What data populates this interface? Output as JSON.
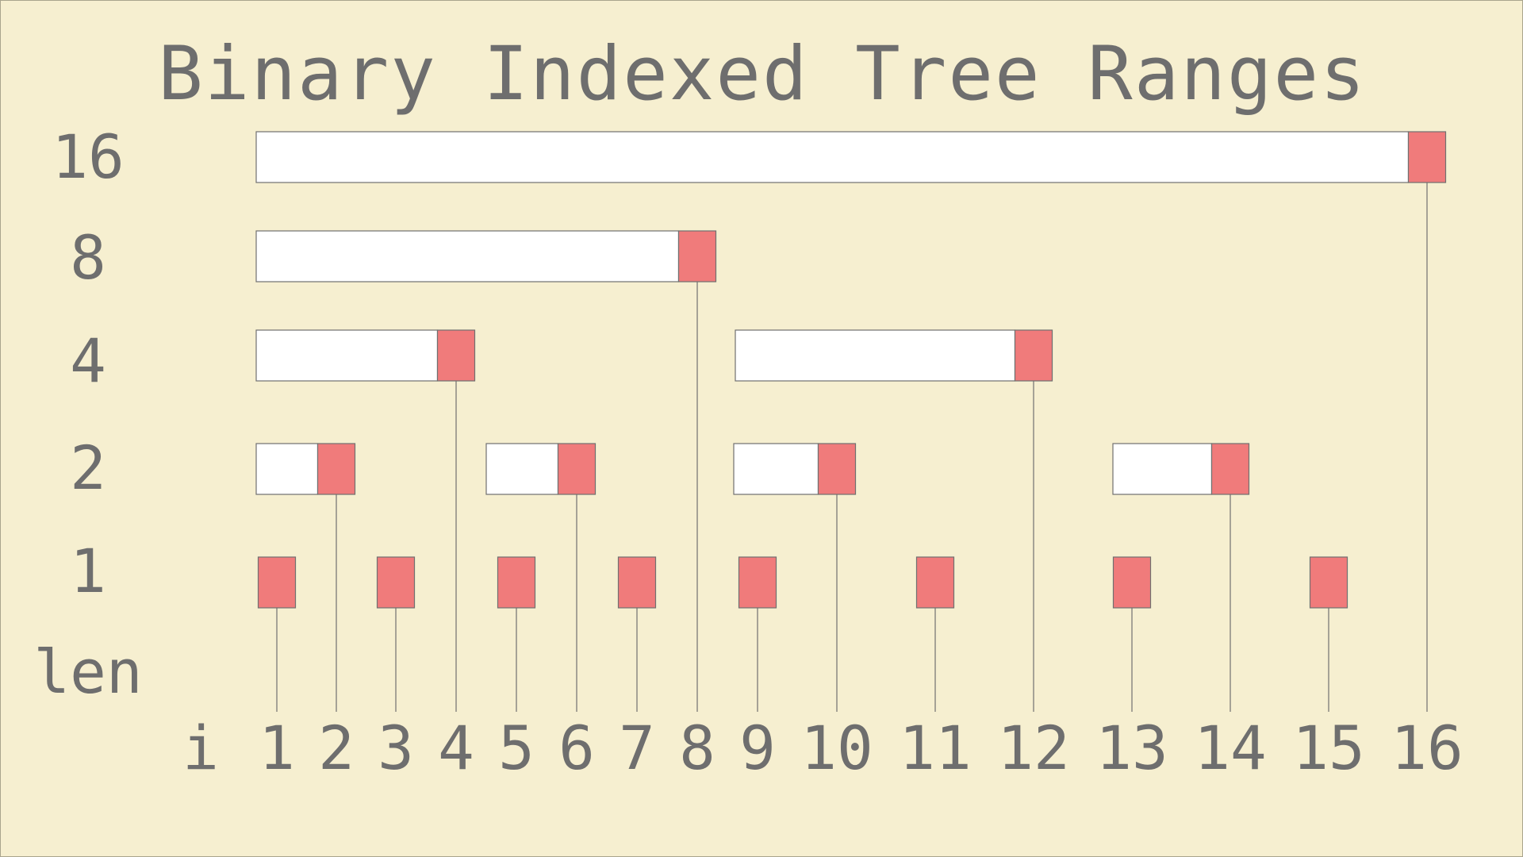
{
  "title": "Binary Indexed Tree Ranges",
  "colors": {
    "background": "#f6efd0",
    "node": "#f07b7b",
    "range": "#ffffff",
    "text": "#6e6e6e",
    "line": "#707070"
  },
  "y_axis": {
    "label": "len",
    "levels": [
      "16",
      "8",
      "4",
      "2",
      "1"
    ]
  },
  "x_axis": {
    "label": "i",
    "indices": [
      "1",
      "2",
      "3",
      "4",
      "5",
      "6",
      "7",
      "8",
      "9",
      "10",
      "11",
      "12",
      "13",
      "14",
      "15",
      "16"
    ]
  },
  "ranges": [
    {
      "index": 1,
      "len": 1
    },
    {
      "index": 2,
      "len": 2
    },
    {
      "index": 3,
      "len": 1
    },
    {
      "index": 4,
      "len": 4
    },
    {
      "index": 5,
      "len": 1
    },
    {
      "index": 6,
      "len": 2
    },
    {
      "index": 7,
      "len": 1
    },
    {
      "index": 8,
      "len": 8
    },
    {
      "index": 9,
      "len": 1
    },
    {
      "index": 10,
      "len": 2
    },
    {
      "index": 11,
      "len": 1
    },
    {
      "index": 12,
      "len": 4
    },
    {
      "index": 13,
      "len": 1
    },
    {
      "index": 14,
      "len": 2
    },
    {
      "index": 15,
      "len": 1
    },
    {
      "index": 16,
      "len": 16
    }
  ]
}
